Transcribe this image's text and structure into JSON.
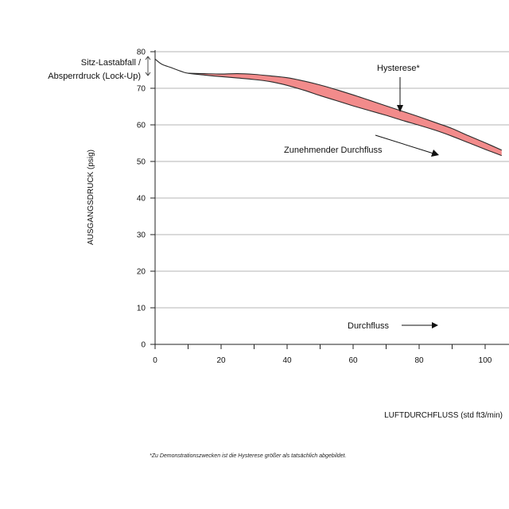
{
  "colors": {
    "hysteresis_fill": "#f28b8b",
    "curve": "#2a2a2a",
    "grid": "#b5b5b5",
    "axis": "#222222"
  },
  "annotations": {
    "seat_drop": "Sitz-Lastabfall /",
    "lockup": "Absperrdruck (Lock-Up)",
    "hysteresis": "Hysterese*",
    "increasing_flow": "Zunehmender Durchfluss",
    "flow": "Durchfluss"
  },
  "footnote": "*Zu Demonstrationszwecken ist die Hysterese größer als tatsächlich abgebildet.",
  "chart_data": {
    "type": "area",
    "xlabel": "LUFTDURCHFLUSS (std ft3/min)",
    "ylabel": "AUSGANGSDRUCK (psig)",
    "xlim": [
      0,
      105
    ],
    "ylim": [
      0,
      80
    ],
    "x_ticks": [
      0,
      20,
      40,
      60,
      80,
      100
    ],
    "x_tick_labels": [
      "0",
      "20",
      "40",
      "60",
      "80",
      "100"
    ],
    "x_minor_ticks": [
      10,
      30,
      50,
      70,
      90
    ],
    "y_ticks": [
      0,
      10,
      20,
      30,
      40,
      50,
      60,
      70,
      80
    ],
    "grid": "horizontal",
    "series": [
      {
        "values_x": [
          0,
          2,
          5,
          8,
          10,
          15,
          20,
          25,
          30,
          35,
          40,
          45,
          50,
          55,
          60,
          65,
          70,
          75,
          80,
          85,
          90,
          95,
          100,
          105
        ],
        "values_y": [
          78,
          76.6,
          75.6,
          74.6,
          74.1,
          73.6,
          73.2,
          72.8,
          72.4,
          71.8,
          70.8,
          69.5,
          68.0,
          66.6,
          65.2,
          63.9,
          62.6,
          61.2,
          59.9,
          58.5,
          56.9,
          55.1,
          53.3,
          51.6
        ]
      },
      {
        "values_x": [
          10,
          15,
          20,
          25,
          30,
          35,
          40,
          45,
          50,
          55,
          60,
          65,
          70,
          75,
          80,
          85,
          90,
          95,
          100,
          105
        ],
        "values_y": [
          74.1,
          74.0,
          73.9,
          74.0,
          73.8,
          73.4,
          72.9,
          72.0,
          70.9,
          69.6,
          68.2,
          66.7,
          65.2,
          63.7,
          62.2,
          60.6,
          59.0,
          57.0,
          55.1,
          53.1
        ]
      }
    ],
    "band_between_series": true
  }
}
